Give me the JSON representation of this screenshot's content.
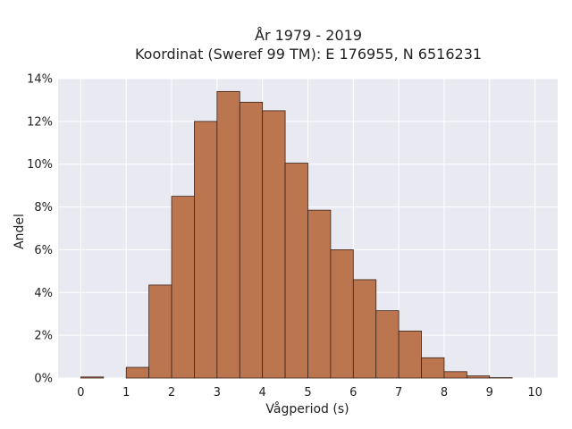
{
  "chart_data": {
    "type": "bar",
    "title": "År 1979 - 2019",
    "subtitle": "Koordinat (Sweref 99 TM): E 176955, N 6516231",
    "xlabel": "Vågperiod (s)",
    "ylabel": "Andel",
    "x_ticks": [
      "0",
      "1",
      "2",
      "3",
      "4",
      "5",
      "6",
      "7",
      "8",
      "9",
      "10"
    ],
    "y_ticks": [
      "0%",
      "2%",
      "4%",
      "6%",
      "8%",
      "10%",
      "12%",
      "14%"
    ],
    "xlim": [
      -0.5,
      10.5
    ],
    "ylim": [
      0,
      14
    ],
    "bin_width": 0.5,
    "bins": [
      {
        "start": 0.0,
        "value": 0.05
      },
      {
        "start": 0.5,
        "value": 0.0
      },
      {
        "start": 1.0,
        "value": 0.5
      },
      {
        "start": 1.5,
        "value": 4.35
      },
      {
        "start": 2.0,
        "value": 8.5
      },
      {
        "start": 2.5,
        "value": 12.0
      },
      {
        "start": 3.0,
        "value": 13.4
      },
      {
        "start": 3.5,
        "value": 12.9
      },
      {
        "start": 4.0,
        "value": 12.5
      },
      {
        "start": 4.5,
        "value": 10.05
      },
      {
        "start": 5.0,
        "value": 7.85
      },
      {
        "start": 5.5,
        "value": 6.0
      },
      {
        "start": 6.0,
        "value": 4.6
      },
      {
        "start": 6.5,
        "value": 3.15
      },
      {
        "start": 7.0,
        "value": 2.2
      },
      {
        "start": 7.5,
        "value": 0.95
      },
      {
        "start": 8.0,
        "value": 0.3
      },
      {
        "start": 8.5,
        "value": 0.1
      },
      {
        "start": 9.0,
        "value": 0.02
      }
    ],
    "grid": true,
    "colors": {
      "bar": "#bb7650",
      "bar_edge": "#3a2418",
      "plot_bg": "#e9e9f1",
      "grid": "#ffffff"
    }
  }
}
